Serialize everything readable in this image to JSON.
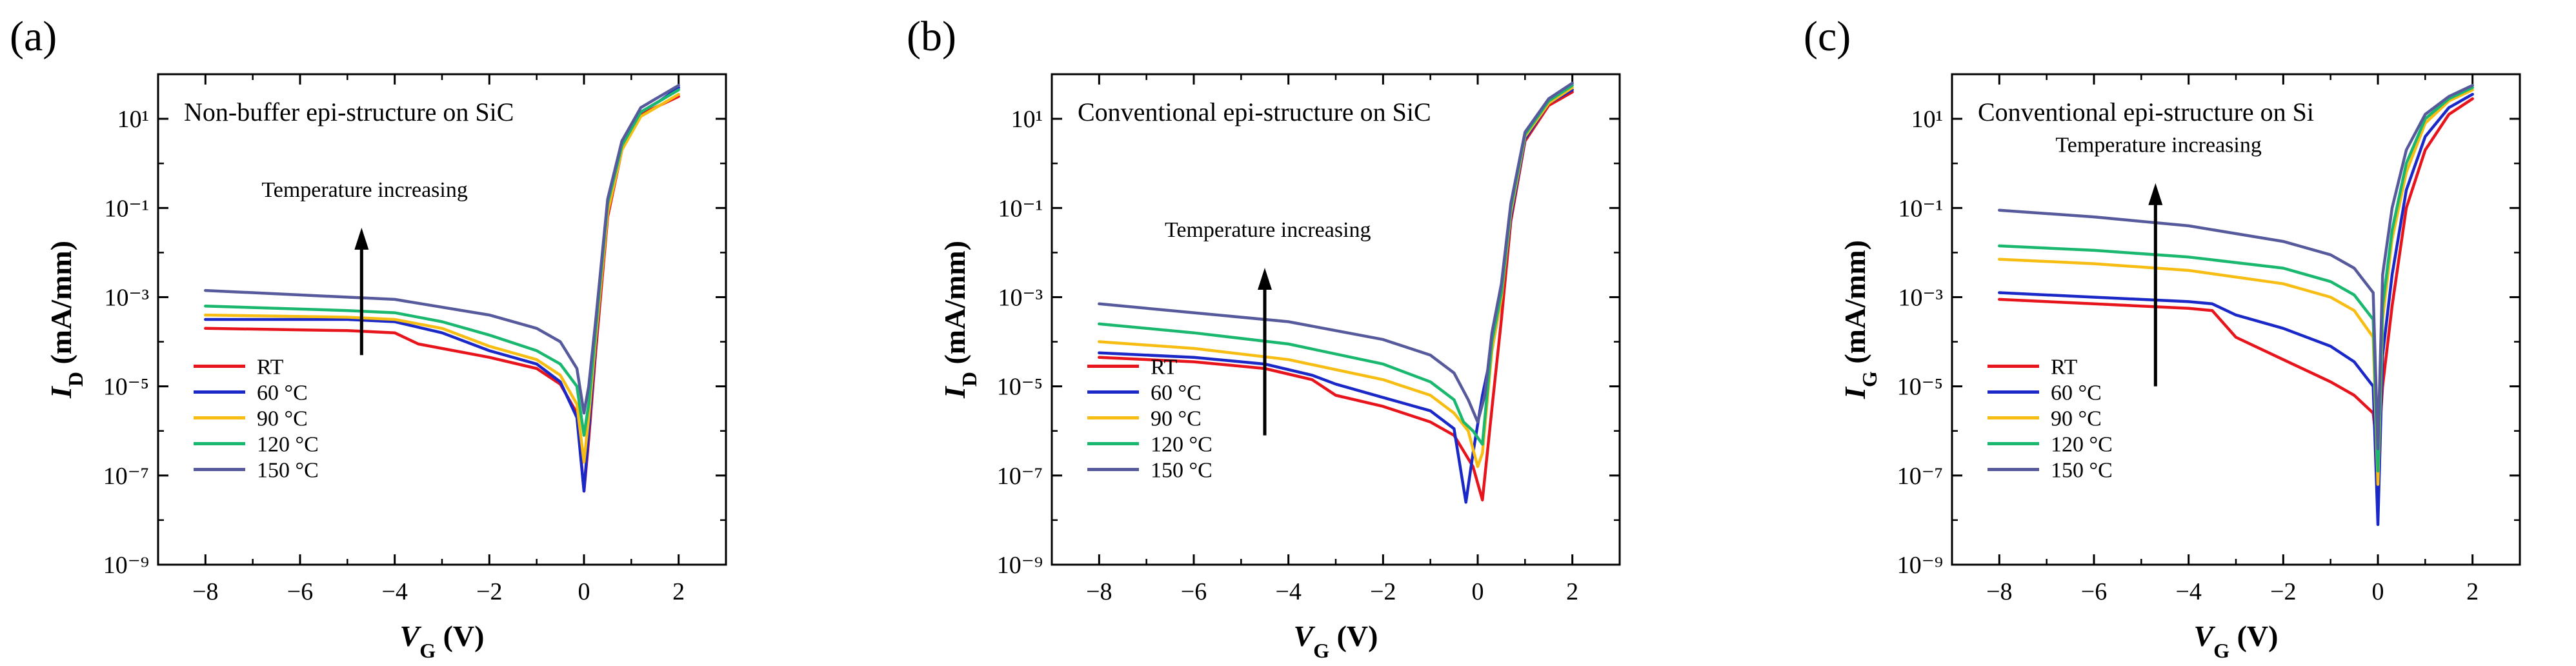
{
  "figure": {
    "panels": [
      "(a)",
      "(b)",
      "(c)"
    ]
  },
  "chart_data": [
    {
      "type": "line",
      "panel": "(a)",
      "title": "Non-buffer epi-structure on SiC",
      "xlabel": "V_G (V)",
      "ylabel": "I_D (mA/mm)",
      "xlabel_main": "V",
      "xlabel_sub": "G",
      "xlabel_unit": " (V)",
      "ylabel_main": "I",
      "ylabel_sub": "D",
      "ylabel_unit": " (mA/mm)",
      "yscale": "log",
      "xlim": [
        -9,
        3
      ],
      "ylim_exp": [
        -9,
        2
      ],
      "xticks": [
        -8,
        -6,
        -4,
        -2,
        0,
        2
      ],
      "yticks_exp": [
        -9,
        -7,
        -5,
        -3,
        -1,
        1
      ],
      "annotation": "Temperature increasing",
      "arrow": {
        "x": -4.7,
        "from_exp": -4.3,
        "to_exp": -1.5
      },
      "series": [
        {
          "name": "RT",
          "color": "#e8141b",
          "points": [
            [
              -8,
              -3.7
            ],
            [
              -5,
              -3.75
            ],
            [
              -4,
              -3.8
            ],
            [
              -3.5,
              -4.05
            ],
            [
              -2,
              -4.35
            ],
            [
              -1,
              -4.6
            ],
            [
              -0.5,
              -4.95
            ],
            [
              -0.15,
              -5.6
            ],
            [
              0,
              -7.35
            ],
            [
              0.1,
              -6.2
            ],
            [
              0.25,
              -4.2
            ],
            [
              0.5,
              -1.2
            ],
            [
              0.8,
              0.3
            ],
            [
              1.2,
              1.1
            ],
            [
              1.6,
              1.3
            ],
            [
              2,
              1.5
            ]
          ]
        },
        {
          "name": "60 °C",
          "color": "#1a28c8",
          "points": [
            [
              -8,
              -3.5
            ],
            [
              -5,
              -3.5
            ],
            [
              -4,
              -3.55
            ],
            [
              -3,
              -3.8
            ],
            [
              -2,
              -4.2
            ],
            [
              -1,
              -4.5
            ],
            [
              -0.5,
              -4.9
            ],
            [
              -0.15,
              -5.7
            ],
            [
              0,
              -7.35
            ],
            [
              0.1,
              -6.0
            ],
            [
              0.25,
              -4.0
            ],
            [
              0.5,
              -1.0
            ],
            [
              0.8,
              0.35
            ],
            [
              1.2,
              1.15
            ],
            [
              1.6,
              1.4
            ],
            [
              2,
              1.7
            ]
          ]
        },
        {
          "name": "90 °C",
          "color": "#f7bd12",
          "points": [
            [
              -8,
              -3.4
            ],
            [
              -5,
              -3.45
            ],
            [
              -4,
              -3.5
            ],
            [
              -3,
              -3.7
            ],
            [
              -2,
              -4.1
            ],
            [
              -1,
              -4.4
            ],
            [
              -0.5,
              -4.75
            ],
            [
              -0.15,
              -5.4
            ],
            [
              0,
              -6.7
            ],
            [
              0.1,
              -5.7
            ],
            [
              0.25,
              -3.9
            ],
            [
              0.5,
              -1.1
            ],
            [
              0.8,
              0.3
            ],
            [
              1.2,
              1.05
            ],
            [
              1.6,
              1.3
            ],
            [
              2,
              1.55
            ]
          ]
        },
        {
          "name": "120 °C",
          "color": "#19b86e",
          "points": [
            [
              -8,
              -3.2
            ],
            [
              -5,
              -3.3
            ],
            [
              -4,
              -3.35
            ],
            [
              -3,
              -3.55
            ],
            [
              -2,
              -3.85
            ],
            [
              -1,
              -4.2
            ],
            [
              -0.5,
              -4.5
            ],
            [
              -0.15,
              -5.0
            ],
            [
              0,
              -6.1
            ],
            [
              0.1,
              -5.4
            ],
            [
              0.25,
              -3.7
            ],
            [
              0.5,
              -0.9
            ],
            [
              0.8,
              0.4
            ],
            [
              1.2,
              1.15
            ],
            [
              1.6,
              1.4
            ],
            [
              2,
              1.65
            ]
          ]
        },
        {
          "name": "150 °C",
          "color": "#565a9c",
          "points": [
            [
              -8,
              -2.85
            ],
            [
              -6,
              -2.95
            ],
            [
              -4,
              -3.05
            ],
            [
              -2,
              -3.4
            ],
            [
              -1,
              -3.7
            ],
            [
              -0.5,
              -4.0
            ],
            [
              -0.15,
              -4.6
            ],
            [
              0,
              -5.6
            ],
            [
              0.1,
              -5.0
            ],
            [
              0.25,
              -3.5
            ],
            [
              0.5,
              -0.8
            ],
            [
              0.8,
              0.5
            ],
            [
              1.2,
              1.25
            ],
            [
              1.6,
              1.5
            ],
            [
              2,
              1.75
            ]
          ]
        }
      ]
    },
    {
      "type": "line",
      "panel": "(b)",
      "title": "Conventional epi-structure on SiC",
      "xlabel": "V_G (V)",
      "ylabel": "I_D (mA/mm)",
      "xlabel_main": "V",
      "xlabel_sub": "G",
      "xlabel_unit": " (V)",
      "ylabel_main": "I",
      "ylabel_sub": "D",
      "ylabel_unit": " (mA/mm)",
      "yscale": "log",
      "xlim": [
        -9,
        3
      ],
      "ylim_exp": [
        -9,
        2
      ],
      "xticks": [
        -8,
        -6,
        -4,
        -2,
        0,
        2
      ],
      "yticks_exp": [
        -9,
        -7,
        -5,
        -3,
        -1,
        1
      ],
      "annotation": "Temperature increasing",
      "arrow": {
        "x": -4.5,
        "from_exp": -6.1,
        "to_exp": -2.4
      },
      "series": [
        {
          "name": "RT",
          "color": "#e8141b",
          "points": [
            [
              -8,
              -4.35
            ],
            [
              -6,
              -4.45
            ],
            [
              -4.5,
              -4.6
            ],
            [
              -3.5,
              -4.85
            ],
            [
              -3,
              -5.2
            ],
            [
              -2,
              -5.45
            ],
            [
              -1,
              -5.8
            ],
            [
              -0.5,
              -6.1
            ],
            [
              -0.1,
              -6.8
            ],
            [
              0.1,
              -7.55
            ],
            [
              0.3,
              -5.5
            ],
            [
              0.5,
              -3.5
            ],
            [
              0.7,
              -1.3
            ],
            [
              1.0,
              0.5
            ],
            [
              1.5,
              1.3
            ],
            [
              2,
              1.6
            ]
          ]
        },
        {
          "name": "60 °C",
          "color": "#1a28c8",
          "points": [
            [
              -8,
              -4.25
            ],
            [
              -6,
              -4.35
            ],
            [
              -4.5,
              -4.5
            ],
            [
              -3.5,
              -4.75
            ],
            [
              -3,
              -4.95
            ],
            [
              -2,
              -5.25
            ],
            [
              -1,
              -5.55
            ],
            [
              -0.5,
              -5.95
            ],
            [
              -0.25,
              -7.6
            ],
            [
              -0.1,
              -6.5
            ],
            [
              0.1,
              -5.2
            ],
            [
              0.3,
              -4.2
            ],
            [
              0.5,
              -3.0
            ],
            [
              0.7,
              -1.2
            ],
            [
              1.0,
              0.55
            ],
            [
              1.5,
              1.35
            ],
            [
              2,
              1.65
            ]
          ]
        },
        {
          "name": "90 °C",
          "color": "#f7bd12",
          "points": [
            [
              -8,
              -4.0
            ],
            [
              -6,
              -4.15
            ],
            [
              -4,
              -4.4
            ],
            [
              -2,
              -4.85
            ],
            [
              -1,
              -5.2
            ],
            [
              -0.5,
              -5.6
            ],
            [
              -0.2,
              -6.0
            ],
            [
              0,
              -6.8
            ],
            [
              0.1,
              -6.5
            ],
            [
              0.3,
              -4.2
            ],
            [
              0.5,
              -3.0
            ],
            [
              0.7,
              -1.1
            ],
            [
              1.0,
              0.6
            ],
            [
              1.5,
              1.35
            ],
            [
              2,
              1.7
            ]
          ]
        },
        {
          "name": "120 °C",
          "color": "#19b86e",
          "points": [
            [
              -8,
              -3.6
            ],
            [
              -6,
              -3.8
            ],
            [
              -4,
              -4.05
            ],
            [
              -2,
              -4.5
            ],
            [
              -1,
              -4.9
            ],
            [
              -0.5,
              -5.3
            ],
            [
              -0.3,
              -5.8
            ],
            [
              -0.1,
              -6.0
            ],
            [
              0.1,
              -6.3
            ],
            [
              0.3,
              -4.0
            ],
            [
              0.5,
              -2.9
            ],
            [
              0.7,
              -1.0
            ],
            [
              1.0,
              0.65
            ],
            [
              1.5,
              1.4
            ],
            [
              2,
              1.75
            ]
          ]
        },
        {
          "name": "150 °C",
          "color": "#565a9c",
          "points": [
            [
              -8,
              -3.15
            ],
            [
              -6,
              -3.35
            ],
            [
              -4,
              -3.55
            ],
            [
              -2,
              -3.95
            ],
            [
              -1,
              -4.3
            ],
            [
              -0.5,
              -4.7
            ],
            [
              -0.2,
              -5.3
            ],
            [
              0,
              -5.8
            ],
            [
              0.15,
              -5.2
            ],
            [
              0.3,
              -3.8
            ],
            [
              0.5,
              -2.7
            ],
            [
              0.7,
              -0.9
            ],
            [
              1.0,
              0.7
            ],
            [
              1.5,
              1.45
            ],
            [
              2,
              1.8
            ]
          ]
        }
      ]
    },
    {
      "type": "line",
      "panel": "(c)",
      "title": "Conventional epi-structure on Si",
      "xlabel": "V_G (V)",
      "ylabel": "I_G (mA/mm)",
      "xlabel_main": "V",
      "xlabel_sub": "G",
      "xlabel_unit": " (V)",
      "ylabel_main": "I",
      "ylabel_sub": "G",
      "ylabel_unit": " (mA/mm)",
      "yscale": "log",
      "xlim": [
        -9,
        3
      ],
      "ylim_exp": [
        -9,
        2
      ],
      "xticks": [
        -8,
        -6,
        -4,
        -2,
        0,
        2
      ],
      "yticks_exp": [
        -9,
        -7,
        -5,
        -3,
        -1,
        1
      ],
      "annotation": "Temperature increasing",
      "arrow": {
        "x": -4.7,
        "from_exp": -5.0,
        "to_exp": -0.5
      },
      "series": [
        {
          "name": "RT",
          "color": "#e8141b",
          "points": [
            [
              -8,
              -3.05
            ],
            [
              -6,
              -3.15
            ],
            [
              -4,
              -3.25
            ],
            [
              -3.5,
              -3.3
            ],
            [
              -3,
              -3.9
            ],
            [
              -2,
              -4.4
            ],
            [
              -1,
              -4.9
            ],
            [
              -0.5,
              -5.2
            ],
            [
              -0.1,
              -5.6
            ],
            [
              0,
              -6.6
            ],
            [
              0.1,
              -5.0
            ],
            [
              0.3,
              -3.2
            ],
            [
              0.6,
              -1.0
            ],
            [
              1.0,
              0.3
            ],
            [
              1.5,
              1.1
            ],
            [
              2,
              1.45
            ]
          ]
        },
        {
          "name": "60 °C",
          "color": "#1a28c8",
          "points": [
            [
              -8,
              -2.9
            ],
            [
              -6,
              -3.0
            ],
            [
              -4,
              -3.1
            ],
            [
              -3.5,
              -3.15
            ],
            [
              -3,
              -3.4
            ],
            [
              -2,
              -3.7
            ],
            [
              -1,
              -4.1
            ],
            [
              -0.5,
              -4.45
            ],
            [
              -0.1,
              -5.0
            ],
            [
              0,
              -8.1
            ],
            [
              0.1,
              -4.3
            ],
            [
              0.3,
              -2.5
            ],
            [
              0.6,
              -0.6
            ],
            [
              1.0,
              0.6
            ],
            [
              1.5,
              1.25
            ],
            [
              2,
              1.55
            ]
          ]
        },
        {
          "name": "90 °C",
          "color": "#f7bd12",
          "points": [
            [
              -8,
              -2.15
            ],
            [
              -6,
              -2.25
            ],
            [
              -4,
              -2.4
            ],
            [
              -2,
              -2.7
            ],
            [
              -1,
              -3.0
            ],
            [
              -0.5,
              -3.3
            ],
            [
              -0.1,
              -3.9
            ],
            [
              0,
              -7.2
            ],
            [
              0.1,
              -3.5
            ],
            [
              0.3,
              -1.7
            ],
            [
              0.6,
              -0.2
            ],
            [
              1.0,
              0.9
            ],
            [
              1.5,
              1.4
            ],
            [
              2,
              1.65
            ]
          ]
        },
        {
          "name": "120 °C",
          "color": "#19b86e",
          "points": [
            [
              -8,
              -1.85
            ],
            [
              -6,
              -1.95
            ],
            [
              -4,
              -2.1
            ],
            [
              -2,
              -2.35
            ],
            [
              -1,
              -2.65
            ],
            [
              -0.5,
              -2.95
            ],
            [
              -0.1,
              -3.5
            ],
            [
              0,
              -6.9
            ],
            [
              0.1,
              -3.2
            ],
            [
              0.3,
              -1.5
            ],
            [
              0.6,
              0.0
            ],
            [
              1.0,
              1.0
            ],
            [
              1.5,
              1.45
            ],
            [
              2,
              1.7
            ]
          ]
        },
        {
          "name": "150 °C",
          "color": "#565a9c",
          "points": [
            [
              -8,
              -1.05
            ],
            [
              -6,
              -1.2
            ],
            [
              -4,
              -1.4
            ],
            [
              -2,
              -1.75
            ],
            [
              -1,
              -2.05
            ],
            [
              -0.5,
              -2.35
            ],
            [
              -0.1,
              -2.9
            ],
            [
              0,
              -6.4
            ],
            [
              0.1,
              -2.5
            ],
            [
              0.3,
              -1.0
            ],
            [
              0.6,
              0.3
            ],
            [
              1.0,
              1.1
            ],
            [
              1.5,
              1.5
            ],
            [
              2,
              1.75
            ]
          ]
        }
      ]
    }
  ]
}
